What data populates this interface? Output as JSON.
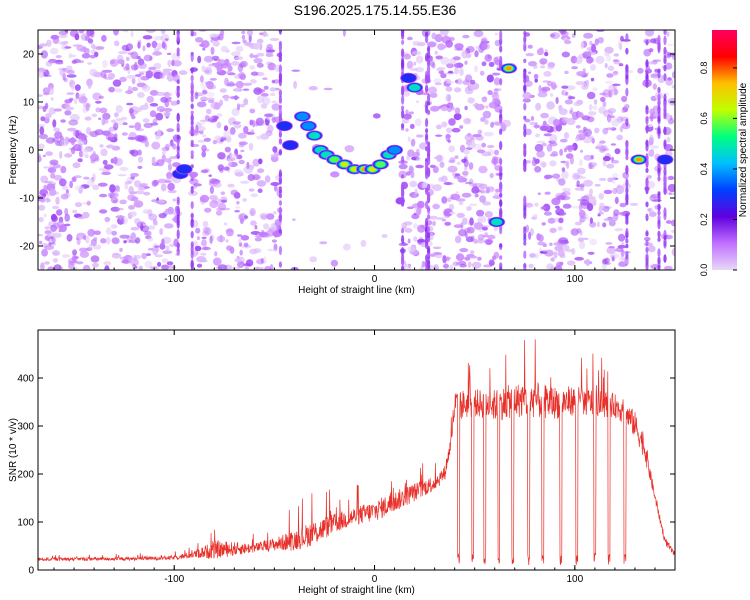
{
  "title": "S196.2025.175.14.55.E36",
  "chart_data": [
    {
      "type": "heatmap",
      "xlabel": "Height of straight line (km)",
      "ylabel": "Frequency (Hz)",
      "xlim": [
        -168,
        150
      ],
      "ylim": [
        -25,
        25
      ],
      "xticks": [
        -100,
        0,
        100
      ],
      "yticks": [
        -20,
        -10,
        0,
        10,
        20
      ],
      "colorbar": {
        "label": "Normalized spectral amplitude",
        "range": [
          0,
          0.95
        ],
        "ticks": [
          0,
          0.2,
          0.4,
          0.6,
          0.8
        ],
        "colormap": [
          "#e8d8f8",
          "#c070ff",
          "#6000e0",
          "#0040ff",
          "#00c0ff",
          "#00ff80",
          "#c0ff00",
          "#ffc000",
          "#ff0000",
          "#ff0060"
        ]
      },
      "strong_components": [
        {
          "x": -97,
          "y": -5,
          "amp": 0.35
        },
        {
          "x": -95,
          "y": -4,
          "amp": 0.3
        },
        {
          "x": -45,
          "y": 5,
          "amp": 0.3
        },
        {
          "x": -42,
          "y": 1,
          "amp": 0.35
        },
        {
          "x": -36,
          "y": 7,
          "amp": 0.4
        },
        {
          "x": -33,
          "y": 5,
          "amp": 0.45
        },
        {
          "x": -30,
          "y": 3,
          "amp": 0.5
        },
        {
          "x": -27,
          "y": 0,
          "amp": 0.55
        },
        {
          "x": -24,
          "y": -1,
          "amp": 0.55
        },
        {
          "x": -20,
          "y": -2,
          "amp": 0.6
        },
        {
          "x": -15,
          "y": -3,
          "amp": 0.7
        },
        {
          "x": -10,
          "y": -4,
          "amp": 0.7
        },
        {
          "x": -5,
          "y": -4,
          "amp": 0.8
        },
        {
          "x": -1,
          "y": -4,
          "amp": 0.75
        },
        {
          "x": 3,
          "y": -3,
          "amp": 0.6
        },
        {
          "x": 7,
          "y": -1,
          "amp": 0.5
        },
        {
          "x": 10,
          "y": 0,
          "amp": 0.45
        },
        {
          "x": 17,
          "y": 15,
          "amp": 0.3
        },
        {
          "x": 20,
          "y": 13,
          "amp": 0.5
        },
        {
          "x": 61,
          "y": -15,
          "amp": 0.55
        },
        {
          "x": 67,
          "y": 17,
          "amp": 0.85
        },
        {
          "x": 132,
          "y": -2,
          "amp": 0.8
        },
        {
          "x": 145,
          "y": -2,
          "amp": 0.3
        }
      ],
      "gaps": [
        {
          "x0": -98,
          "x1": -91
        },
        {
          "x0": -47,
          "x1": 14
        },
        {
          "x0": 26,
          "x1": 27
        },
        {
          "x0": 63,
          "x1": 75
        },
        {
          "x0": 126,
          "x1": 136
        },
        {
          "x0": 142,
          "x1": 145
        }
      ]
    },
    {
      "type": "line",
      "xlabel": "Height of straight line (km)",
      "ylabel": "SNR (10 * v/v)",
      "xlim": [
        -168,
        150
      ],
      "ylim": [
        0,
        500
      ],
      "xticks": [
        -100,
        0,
        100
      ],
      "yticks": [
        0,
        100,
        200,
        300,
        400
      ],
      "grid": false,
      "series": [
        {
          "color": "#e8302a",
          "envelope": {
            "x": [
              -168,
              -120,
              -100,
              -90,
              -80,
              -60,
              -50,
              -40,
              -30,
              -20,
              -10,
              0,
              10,
              20,
              30,
              35,
              38,
              40,
              50,
              60,
              70,
              80,
              90,
              100,
              110,
              120,
              125,
              130,
              135,
              140,
              145,
              150
            ],
            "base": [
              22,
              23,
              25,
              32,
              40,
              45,
              52,
              60,
              75,
              95,
              110,
              120,
              140,
              160,
              180,
              200,
              260,
              340,
              345,
              340,
              350,
              350,
              345,
              350,
              345,
              340,
              325,
              300,
              250,
              150,
              60,
              30
            ],
            "peak": [
              35,
              35,
              40,
              60,
              110,
              80,
              100,
              140,
              170,
              170,
              180,
              200,
              220,
              230,
              240,
              260,
              320,
              460,
              450,
              460,
              480,
              490,
              470,
              460,
              450,
              430,
              420,
              400,
              340,
              180,
              90,
              50
            ]
          },
          "dropouts_x": [
            42,
            49,
            55,
            62,
            69,
            77,
            84,
            93,
            101,
            110,
            117,
            125
          ]
        }
      ]
    }
  ]
}
